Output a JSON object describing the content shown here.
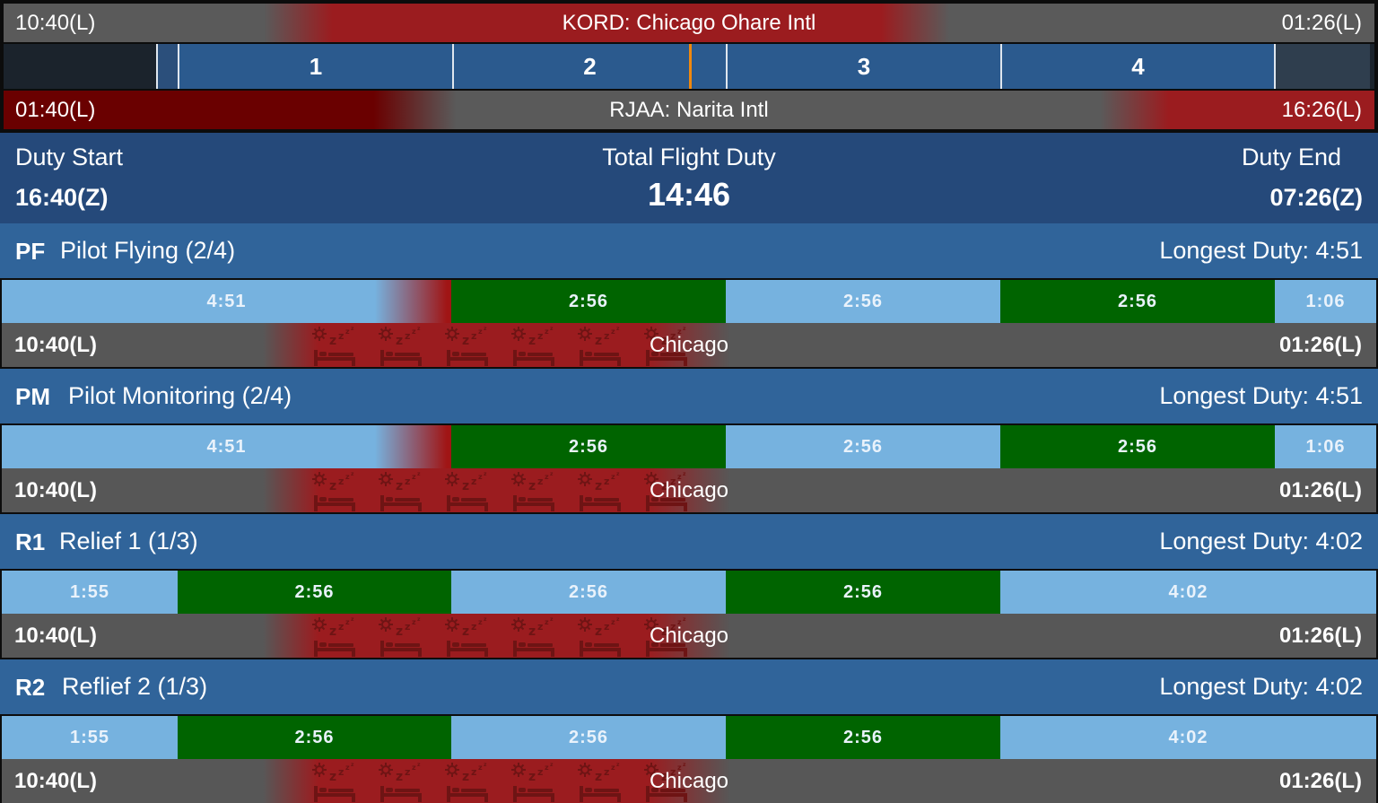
{
  "origin": {
    "local_time": "10:40(L)",
    "name": "KORD: Chicago Ohare Intl",
    "end_local_time": "01:26(L)"
  },
  "destination": {
    "local_time": "01:40(L)",
    "name": "RJAA: Narita Intl",
    "end_local_time": "16:26(L)"
  },
  "phases": [
    "1",
    "2",
    "3",
    "4"
  ],
  "duty": {
    "start_label": "Duty Start",
    "start_value": "16:40(Z)",
    "total_label": "Total Flight Duty",
    "total_value": "14:46",
    "end_label": "Duty End",
    "end_value": "07:26(Z)"
  },
  "crew": [
    {
      "code": "PF",
      "name": "Pilot Flying (2/4)",
      "longest": "Longest Duty: 4:51",
      "segments": [
        "4:51",
        "2:56",
        "2:56",
        "2:56",
        "1:06"
      ],
      "start_time": "10:40(L)",
      "city": "Chicago",
      "end_time": "01:26(L)"
    },
    {
      "code": "PM",
      "name": "Pilot Monitoring (2/4)",
      "longest": "Longest Duty: 4:51",
      "segments": [
        "4:51",
        "2:56",
        "2:56",
        "2:56",
        "1:06"
      ],
      "start_time": "10:40(L)",
      "city": "Chicago",
      "end_time": "01:26(L)"
    },
    {
      "code": "R1",
      "name": "Relief 1 (1/3)",
      "longest": "Longest Duty: 4:02",
      "segments": [
        "1:55",
        "2:56",
        "2:56",
        "2:56",
        "4:02"
      ],
      "start_time": "10:40(L)",
      "city": "Chicago",
      "end_time": "01:26(L)"
    },
    {
      "code": "R2",
      "name": "Reflief 2 (1/3)",
      "longest": "Longest Duty: 4:02",
      "segments": [
        "1:55",
        "2:56",
        "2:56",
        "2:56",
        "4:02"
      ],
      "start_time": "10:40(L)",
      "city": "Chicago",
      "end_time": "01:26(L)"
    }
  ],
  "colors": {
    "rest": "#76b2df",
    "flight": "#006400",
    "night": "#9b1c1f",
    "now_marker": "#f0880e",
    "header": "#25497a"
  },
  "icons": {
    "sleep": "bed-sleep-icon"
  }
}
